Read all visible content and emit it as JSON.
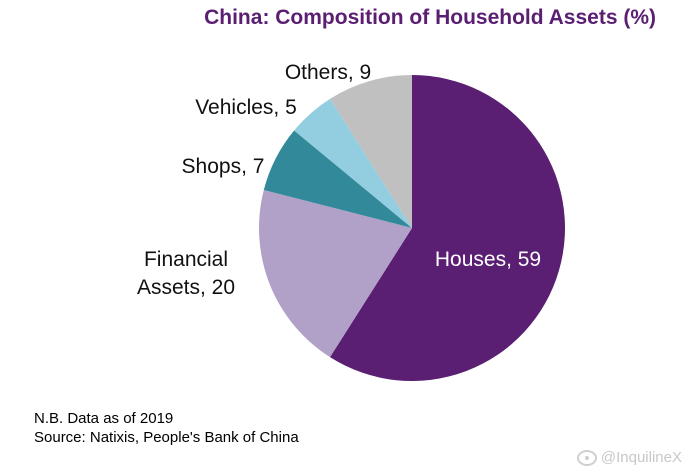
{
  "title": "China: Composition of Household Assets (%)",
  "chart_data": {
    "type": "pie",
    "title": "China: Composition of Household Assets (%)",
    "start_angle_deg": 0,
    "direction": "clockwise",
    "slices": [
      {
        "label": "Houses",
        "value": 59,
        "display_lines": [
          "Houses, 59"
        ],
        "color": "#5a1e72",
        "label_inside": true
      },
      {
        "label": "Financial Assets",
        "value": 20,
        "display_lines": [
          "Financial",
          "Assets, 20"
        ],
        "color": "#b1a1c9",
        "label_inside": false
      },
      {
        "label": "Shops",
        "value": 7,
        "display_lines": [
          "Shops, 7"
        ],
        "color": "#31899a",
        "label_inside": false
      },
      {
        "label": "Vehicles",
        "value": 5,
        "display_lines": [
          "Vehicles, 5"
        ],
        "color": "#92cde0",
        "label_inside": false
      },
      {
        "label": "Others",
        "value": 9,
        "display_lines": [
          "Others, 9"
        ],
        "color": "#c0c0c0",
        "label_inside": false
      }
    ]
  },
  "notes": {
    "line1": "N.B. Data as of 2019",
    "line2": "Source: Natixis, People's Bank of China"
  },
  "watermark": {
    "text": "@InquilineX",
    "icon": "weibo-icon"
  }
}
